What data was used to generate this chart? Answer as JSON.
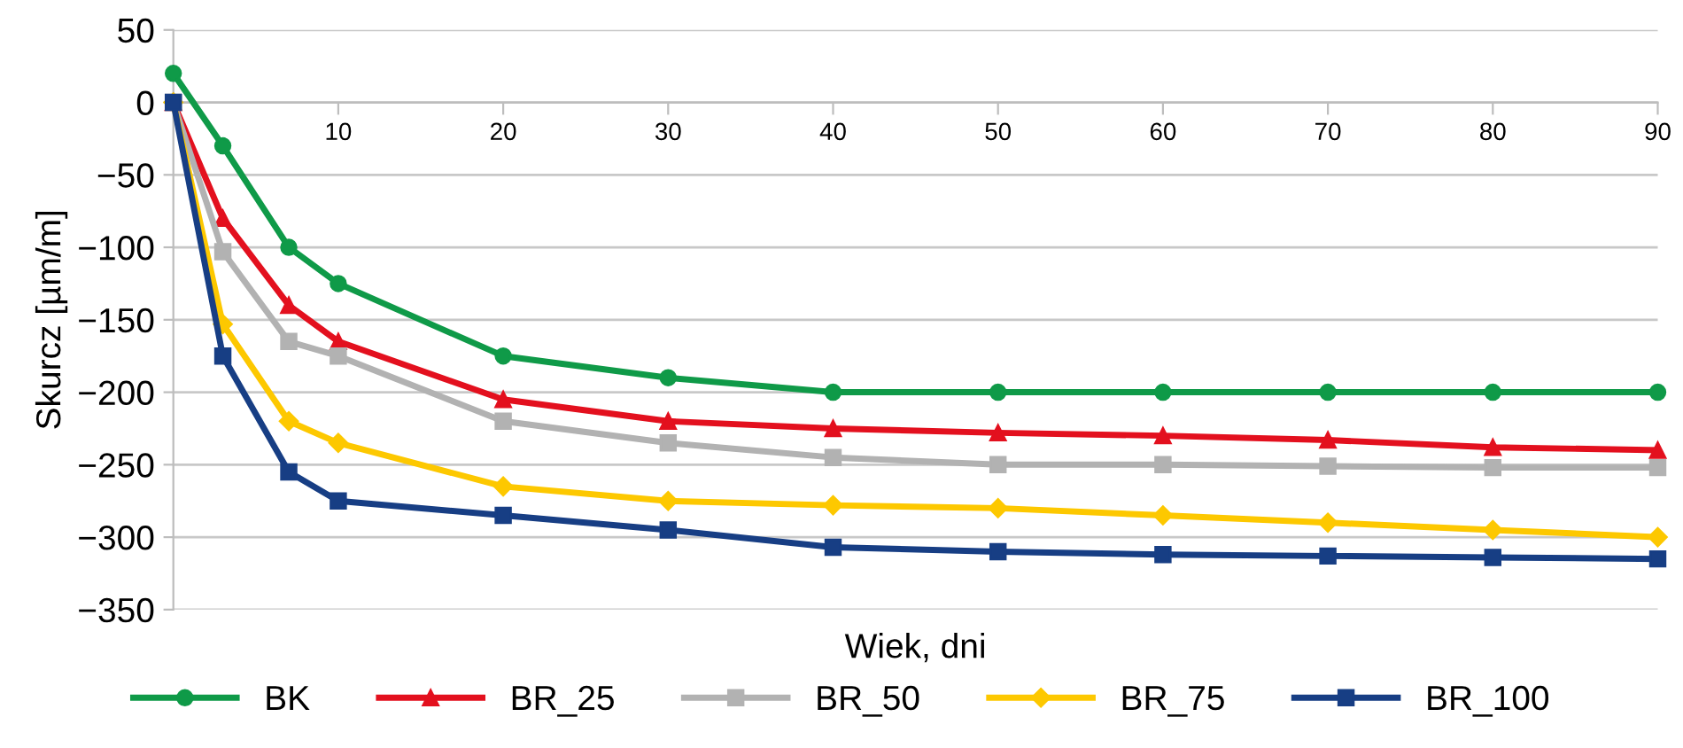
{
  "chart_data": {
    "type": "line",
    "xlabel": "Wiek, dni",
    "ylabel": "Skurcz [µm/m]",
    "x": [
      0,
      3,
      7,
      10,
      20,
      30,
      40,
      50,
      60,
      70,
      80,
      90
    ],
    "xlim": [
      0,
      90
    ],
    "xticks": [
      10,
      20,
      30,
      40,
      50,
      60,
      70,
      80,
      90
    ],
    "ylim": [
      -350,
      50
    ],
    "yticks": [
      -350,
      -300,
      -250,
      -200,
      -150,
      -100,
      -50,
      0,
      50
    ],
    "grid": "y",
    "legend": "bottom",
    "line_style": "solid",
    "series": [
      {
        "name": "BK",
        "color": "#0f9a48",
        "marker": "circle",
        "values": [
          20,
          -30,
          -100,
          -125,
          -175,
          -190,
          -200,
          -200,
          -200,
          -200,
          -200,
          -200
        ]
      },
      {
        "name": "BR_25",
        "color": "#e3101e",
        "marker": "triangle",
        "values": [
          0,
          -80,
          -140,
          -165,
          -205,
          -220,
          -225,
          -228,
          -230,
          -233,
          -238,
          -240
        ]
      },
      {
        "name": "BR_50",
        "color": "#b2b2b2",
        "marker": "square",
        "values": [
          0,
          -103,
          -165,
          -175,
          -220,
          -235,
          -245,
          -250,
          -250,
          -251,
          -252,
          -252
        ]
      },
      {
        "name": "BR_75",
        "color": "#fdc800",
        "marker": "diamond",
        "values": [
          0,
          -153,
          -220,
          -235,
          -265,
          -275,
          -278,
          -280,
          -285,
          -290,
          -295,
          -300
        ]
      },
      {
        "name": "BR_100",
        "color": "#173e84",
        "marker": "square",
        "values": [
          0,
          -175,
          -255,
          -275,
          -285,
          -295,
          -307,
          -310,
          -312,
          -313,
          -314,
          -315
        ]
      }
    ]
  }
}
